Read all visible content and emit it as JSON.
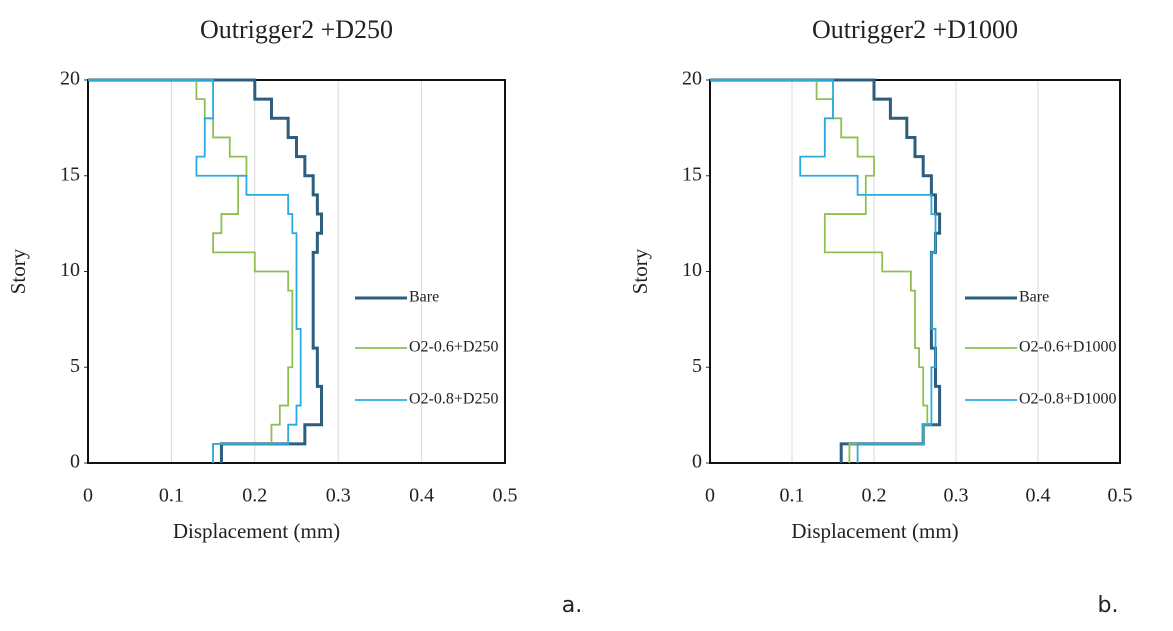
{
  "chart_data": [
    {
      "type": "line",
      "title": "Outrigger2 +D250",
      "x_label": "Displacement (mm)",
      "y_label": "Story",
      "y": [
        0,
        1,
        2,
        3,
        4,
        5,
        6,
        7,
        8,
        9,
        10,
        11,
        12,
        13,
        14,
        15,
        16,
        17,
        18,
        19,
        20
      ],
      "xlim": [
        0,
        0.5
      ],
      "ylim": [
        0,
        20
      ],
      "xticks": [
        0,
        0.1,
        0.2,
        0.3,
        0.4,
        0.5
      ],
      "yticks": [
        0,
        5,
        10,
        15,
        20
      ],
      "grid": "x",
      "series": [
        {
          "name": "Bare",
          "color": "#2e5e7e",
          "x": [
            0.16,
            0.26,
            0.28,
            0.28,
            0.275,
            0.275,
            0.27,
            0.27,
            0.27,
            0.27,
            0.27,
            0.275,
            0.28,
            0.275,
            0.27,
            0.26,
            0.25,
            0.24,
            0.22,
            0.2,
            0
          ]
        },
        {
          "name": "O2-0.6+D250",
          "color": "#8cc152",
          "x": [
            0.15,
            0.22,
            0.23,
            0.24,
            0.24,
            0.245,
            0.245,
            0.245,
            0.245,
            0.24,
            0.2,
            0.15,
            0.16,
            0.18,
            0.18,
            0.19,
            0.17,
            0.15,
            0.14,
            0.13,
            0
          ]
        },
        {
          "name": "O2-0.8+D250",
          "color": "#29abe2",
          "x": [
            0.15,
            0.24,
            0.25,
            0.255,
            0.255,
            0.255,
            0.255,
            0.25,
            0.25,
            0.25,
            0.25,
            0.25,
            0.245,
            0.24,
            0.19,
            0.13,
            0.14,
            0.14,
            0.15,
            0.15,
            0
          ]
        }
      ]
    },
    {
      "type": "line",
      "title": "Outrigger2 +D1000",
      "x_label": "Displacement (mm)",
      "y_label": "Story",
      "y": [
        0,
        1,
        2,
        3,
        4,
        5,
        6,
        7,
        8,
        9,
        10,
        11,
        12,
        13,
        14,
        15,
        16,
        17,
        18,
        19,
        20
      ],
      "xlim": [
        0,
        0.5
      ],
      "ylim": [
        0,
        20
      ],
      "xticks": [
        0,
        0.1,
        0.2,
        0.3,
        0.4,
        0.5
      ],
      "yticks": [
        0,
        5,
        10,
        15,
        20
      ],
      "grid": "x",
      "series": [
        {
          "name": "Bare",
          "color": "#2e5e7e",
          "x": [
            0.16,
            0.26,
            0.28,
            0.28,
            0.275,
            0.275,
            0.27,
            0.27,
            0.27,
            0.27,
            0.27,
            0.275,
            0.28,
            0.275,
            0.27,
            0.26,
            0.25,
            0.24,
            0.22,
            0.2,
            0
          ]
        },
        {
          "name": "O2-0.6+D1000",
          "color": "#8cc152",
          "x": [
            0.17,
            0.26,
            0.265,
            0.26,
            0.26,
            0.255,
            0.25,
            0.25,
            0.25,
            0.245,
            0.21,
            0.14,
            0.14,
            0.19,
            0.19,
            0.2,
            0.18,
            0.16,
            0.15,
            0.13,
            0
          ]
        },
        {
          "name": "O2-0.8+D1000",
          "color": "#29abe2",
          "x": [
            0.18,
            0.26,
            0.27,
            0.27,
            0.27,
            0.275,
            0.275,
            0.27,
            0.27,
            0.27,
            0.27,
            0.275,
            0.275,
            0.27,
            0.18,
            0.11,
            0.14,
            0.14,
            0.15,
            0.15,
            0
          ]
        }
      ]
    }
  ],
  "captions": [
    "a.",
    "b."
  ]
}
